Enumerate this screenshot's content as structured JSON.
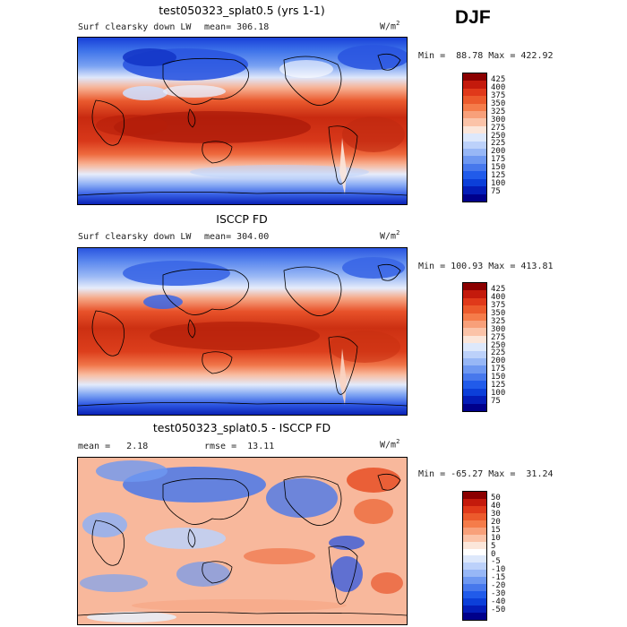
{
  "season": "DJF",
  "units_base": "W/m",
  "units_sup": "2",
  "panels": [
    {
      "title": "test050323_splat0.5 (yrs 1-1)",
      "left_label": "Surf clearsky down LW",
      "stat1": "mean= 306.18",
      "stat2": "",
      "minmax": "Min =  88.78 Max = 422.92",
      "colorbar": {
        "colors": [
          "#8b0000",
          "#c41a0c",
          "#e0391a",
          "#ec5a2c",
          "#f57c4a",
          "#f8a07a",
          "#fbc3a8",
          "#fbe6da",
          "#dde8fb",
          "#bcd1fa",
          "#97b7f6",
          "#6e98f1",
          "#4778ec",
          "#215bea",
          "#0c3fd9",
          "#041db8",
          "#00008b"
        ],
        "ticks": [
          "425",
          "400",
          "375",
          "350",
          "325",
          "300",
          "275",
          "250",
          "225",
          "200",
          "175",
          "150",
          "125",
          "100",
          "75"
        ]
      }
    },
    {
      "title": "ISCCP FD",
      "left_label": "Surf clearsky down LW",
      "stat1": "mean= 304.00",
      "stat2": "",
      "minmax": "Min = 100.93 Max = 413.81",
      "colorbar": {
        "colors": [
          "#8b0000",
          "#c41a0c",
          "#e0391a",
          "#ec5a2c",
          "#f57c4a",
          "#f8a07a",
          "#fbc3a8",
          "#fbe6da",
          "#dde8fb",
          "#bcd1fa",
          "#97b7f6",
          "#6e98f1",
          "#4778ec",
          "#215bea",
          "#0c3fd9",
          "#041db8",
          "#00008b"
        ],
        "ticks": [
          "425",
          "400",
          "375",
          "350",
          "325",
          "300",
          "275",
          "250",
          "225",
          "200",
          "175",
          "150",
          "125",
          "100",
          "75"
        ]
      }
    },
    {
      "title": "test050323_splat0.5 - ISCCP FD",
      "left_label": "mean =   2.18",
      "stat1": "",
      "stat2": "rmse =  13.11",
      "minmax": "Min = -65.27 Max =  31.24",
      "colorbar": {
        "colors": [
          "#8b0000",
          "#c41a0c",
          "#e0391a",
          "#ec5a2c",
          "#f57c4a",
          "#f8a07a",
          "#fbc3a8",
          "#fbe6da",
          "#ffffff",
          "#dde8fb",
          "#bcd1fa",
          "#97b7f6",
          "#6e98f1",
          "#4778ec",
          "#215bea",
          "#0c3fd9",
          "#041db8",
          "#00008b"
        ],
        "ticks": [
          "50",
          "40",
          "30",
          "20",
          "15",
          "10",
          "5",
          "0",
          "-5",
          "-10",
          "-15",
          "-20",
          "-30",
          "-40",
          "-50"
        ]
      }
    }
  ],
  "palette": {
    "deep_red": "#8b0000",
    "red": "#e0391a",
    "orange": "#f57c4a",
    "light_salmon": "#fbc3a8",
    "white": "#ffffff",
    "light_blue": "#bcd1fa",
    "blue": "#4778ec",
    "deep_blue": "#00008b"
  }
}
